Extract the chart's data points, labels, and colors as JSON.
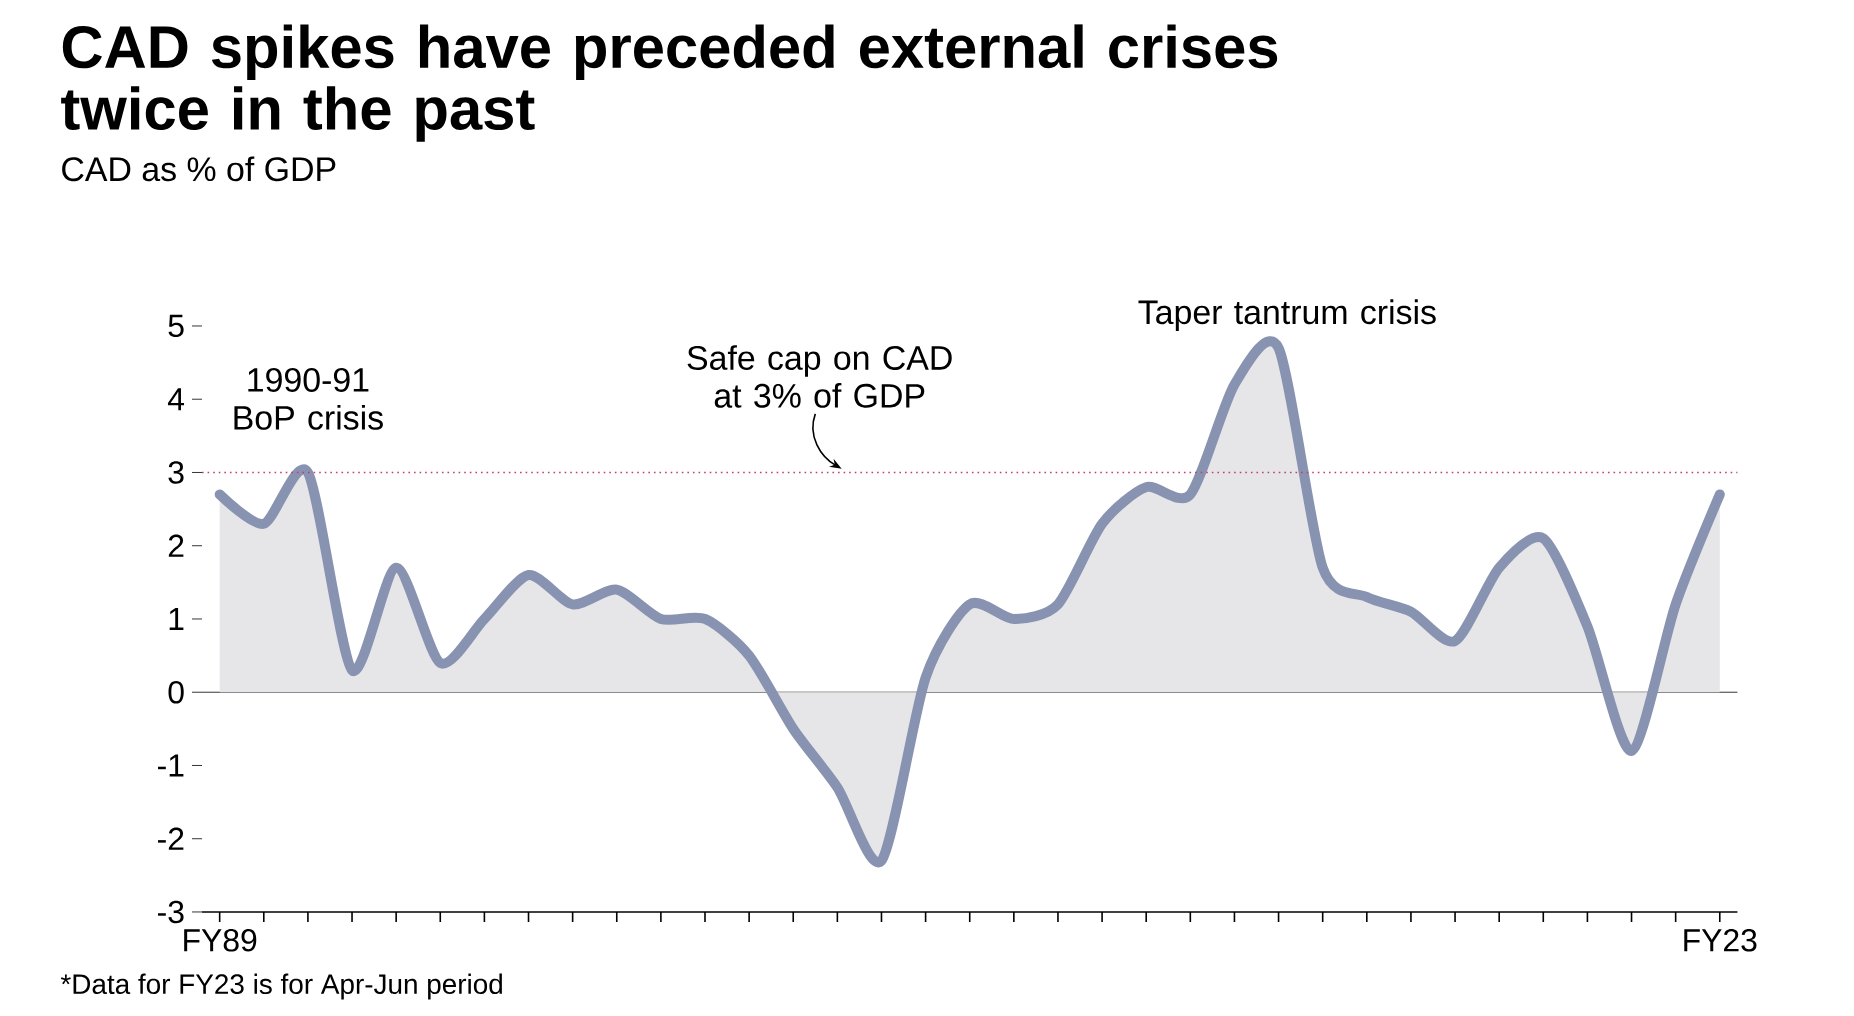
{
  "chart_data": {
    "type": "area",
    "title": "CAD spikes have preceded external crises twice in the past",
    "subtitle": "CAD as % of GDP",
    "categories": [
      "FY89",
      null,
      null,
      null,
      null,
      null,
      null,
      null,
      null,
      null,
      null,
      null,
      null,
      null,
      null,
      null,
      null,
      null,
      null,
      null,
      null,
      null,
      null,
      null,
      null,
      null,
      null,
      null,
      null,
      null,
      null,
      null,
      null,
      null,
      "FY23"
    ],
    "series": [
      {
        "color": "#8793b0",
        "values": [
          2.7,
          2.3,
          3.0,
          0.3,
          1.7,
          0.4,
          1.0,
          1.6,
          1.2,
          1.4,
          1.0,
          1.0,
          0.5,
          -0.5,
          -1.3,
          -2.3,
          0.2,
          1.2,
          1.0,
          1.2,
          2.3,
          2.8,
          2.7,
          4.2,
          4.7,
          1.7,
          1.3,
          1.1,
          0.7,
          1.7,
          2.1,
          0.9,
          -0.8,
          1.2,
          2.7
        ]
      }
    ],
    "ylim": [
      -3,
      5
    ],
    "yticks": [
      -3,
      -2,
      -1,
      0,
      1,
      2,
      3,
      4,
      5
    ],
    "ref_lines": [
      {
        "axis": "y",
        "value": 3,
        "label": "Safe cap on CAD at 3% of GDP",
        "color": "#c0406a",
        "line_style": "dotted"
      }
    ],
    "annotations": [
      "1990-91 BoP crisis",
      "Taper tantrum crisis",
      "*Data for FY23 is for Apr-Jun period"
    ]
  }
}
